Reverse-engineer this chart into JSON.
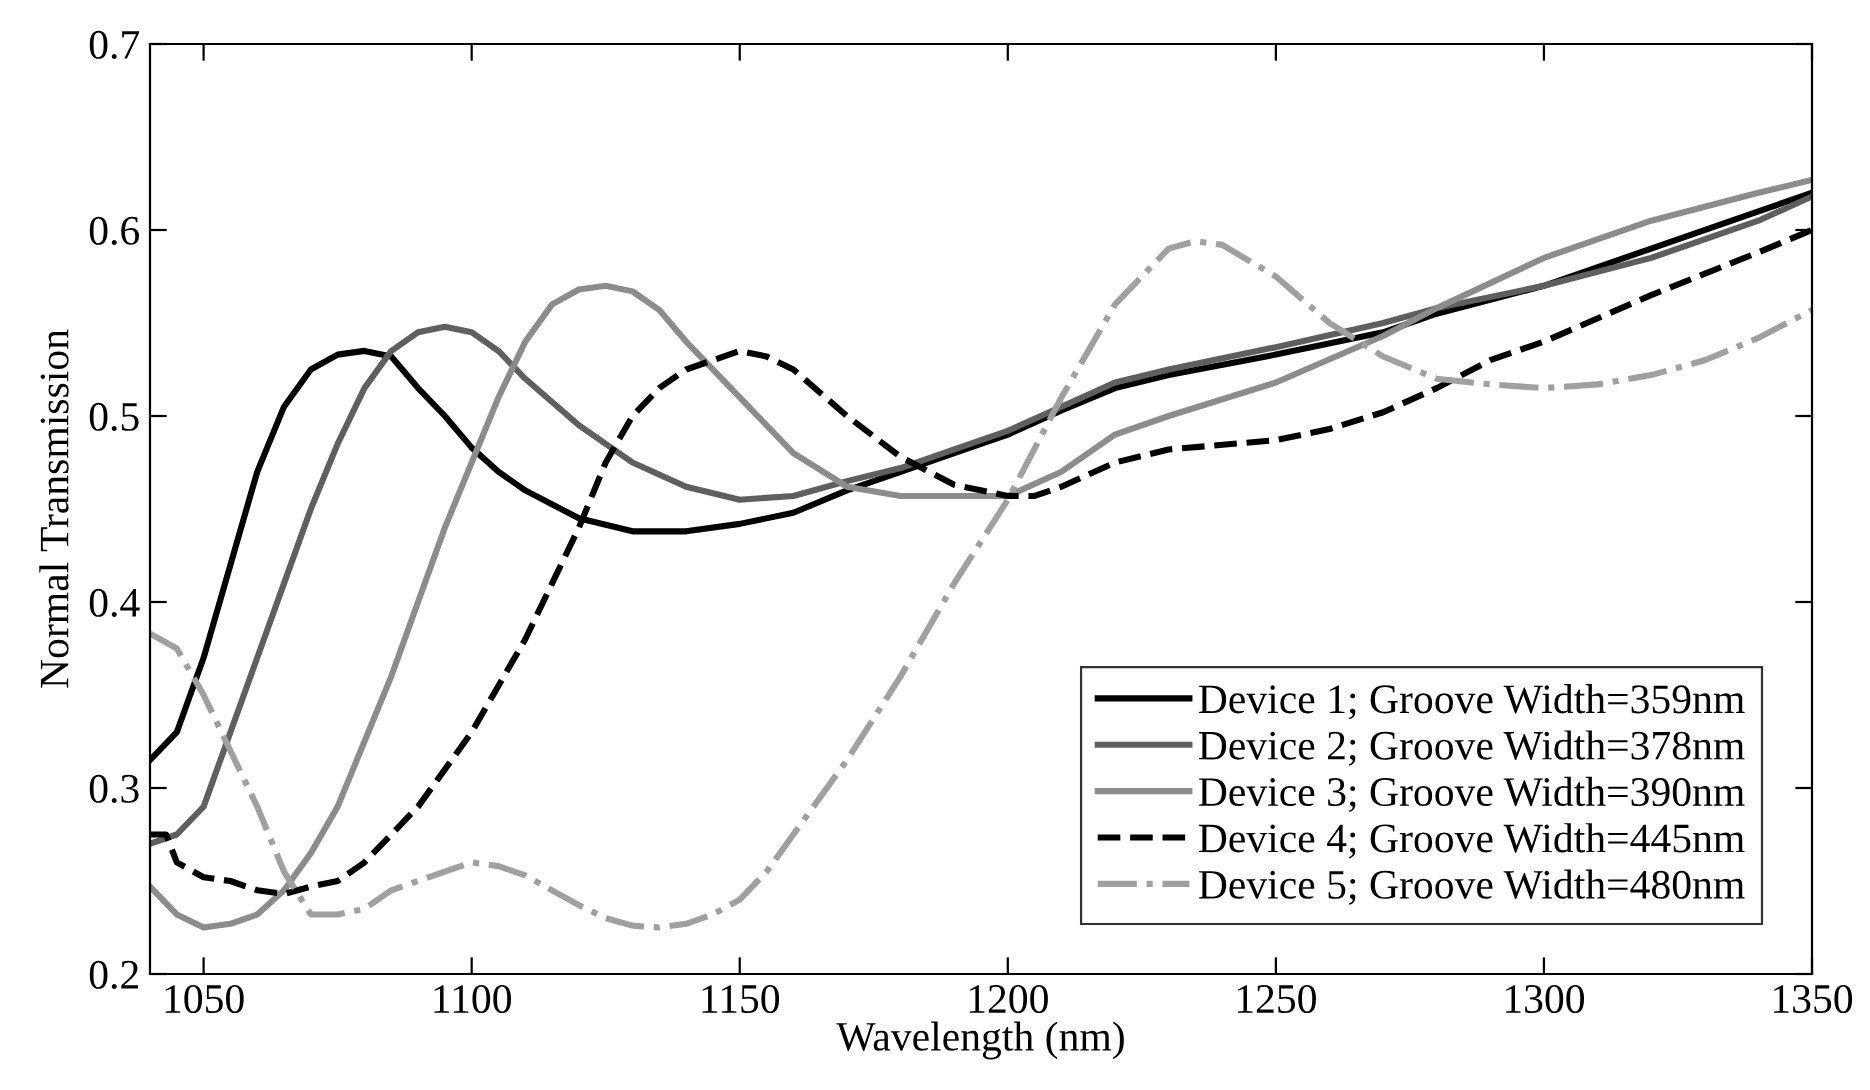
{
  "chart_data": {
    "type": "line",
    "xlabel": "Wavelength (nm)",
    "ylabel": "Normal Transmission",
    "xlim": [
      1040,
      1350
    ],
    "xticks": [
      1050,
      1100,
      1150,
      1200,
      1250,
      1300,
      1350
    ],
    "ylim": [
      0.2,
      0.7
    ],
    "yticks": [
      0.2,
      0.3,
      0.4,
      0.5,
      0.6,
      0.7
    ],
    "grid": false,
    "legend": "bottom right",
    "marker": "none",
    "series": [
      {
        "name": "Device 1; Groove Width=359nm",
        "color": "#000000",
        "line_style": "solid",
        "x": [
          1040,
          1045,
          1050,
          1055,
          1060,
          1065,
          1070,
          1075,
          1080,
          1085,
          1090,
          1095,
          1100,
          1105,
          1110,
          1120,
          1130,
          1140,
          1150,
          1160,
          1170,
          1180,
          1190,
          1200,
          1210,
          1220,
          1230,
          1250,
          1270,
          1280,
          1300,
          1320,
          1340,
          1350
        ],
        "values": [
          0.315,
          0.33,
          0.37,
          0.42,
          0.47,
          0.505,
          0.525,
          0.533,
          0.535,
          0.532,
          0.515,
          0.5,
          0.483,
          0.47,
          0.46,
          0.445,
          0.438,
          0.438,
          0.442,
          0.448,
          0.46,
          0.47,
          0.48,
          0.49,
          0.503,
          0.515,
          0.522,
          0.533,
          0.545,
          0.555,
          0.57,
          0.59,
          0.61,
          0.62
        ]
      },
      {
        "name": "Device 2; Groove Width=378nm",
        "color": "#5f5f5f",
        "line_style": "solid",
        "x": [
          1040,
          1045,
          1050,
          1055,
          1060,
          1065,
          1070,
          1075,
          1080,
          1085,
          1090,
          1095,
          1100,
          1105,
          1110,
          1120,
          1130,
          1140,
          1150,
          1160,
          1170,
          1180,
          1190,
          1200,
          1210,
          1220,
          1230,
          1250,
          1270,
          1280,
          1300,
          1320,
          1340,
          1350
        ],
        "values": [
          0.27,
          0.275,
          0.29,
          0.33,
          0.37,
          0.41,
          0.45,
          0.485,
          0.515,
          0.535,
          0.545,
          0.548,
          0.545,
          0.535,
          0.52,
          0.495,
          0.475,
          0.462,
          0.455,
          0.457,
          0.465,
          0.472,
          0.482,
          0.492,
          0.505,
          0.518,
          0.525,
          0.537,
          0.55,
          0.558,
          0.57,
          0.585,
          0.605,
          0.618
        ]
      },
      {
        "name": "Device 3; Groove Width=390nm",
        "color": "#8c8c8c",
        "line_style": "solid",
        "x": [
          1040,
          1045,
          1050,
          1055,
          1060,
          1065,
          1070,
          1075,
          1080,
          1085,
          1090,
          1095,
          1100,
          1105,
          1110,
          1115,
          1120,
          1125,
          1130,
          1135,
          1140,
          1150,
          1160,
          1170,
          1180,
          1190,
          1200,
          1210,
          1220,
          1230,
          1250,
          1270,
          1280,
          1300,
          1320,
          1340,
          1350
        ],
        "values": [
          0.247,
          0.232,
          0.225,
          0.227,
          0.232,
          0.245,
          0.265,
          0.29,
          0.325,
          0.36,
          0.4,
          0.44,
          0.475,
          0.51,
          0.54,
          0.56,
          0.568,
          0.57,
          0.567,
          0.557,
          0.54,
          0.51,
          0.48,
          0.462,
          0.457,
          0.457,
          0.457,
          0.47,
          0.49,
          0.5,
          0.518,
          0.543,
          0.558,
          0.585,
          0.605,
          0.62,
          0.627
        ]
      },
      {
        "name": "Device 4; Groove Width=445nm",
        "color": "#000000",
        "line_style": "dashed",
        "x": [
          1040,
          1043,
          1045,
          1050,
          1055,
          1060,
          1065,
          1070,
          1075,
          1080,
          1085,
          1090,
          1095,
          1100,
          1105,
          1110,
          1115,
          1120,
          1125,
          1130,
          1135,
          1140,
          1150,
          1155,
          1160,
          1170,
          1180,
          1190,
          1200,
          1205,
          1210,
          1220,
          1230,
          1250,
          1260,
          1270,
          1280,
          1290,
          1300,
          1320,
          1340,
          1350
        ],
        "values": [
          0.275,
          0.275,
          0.26,
          0.252,
          0.25,
          0.245,
          0.243,
          0.247,
          0.25,
          0.26,
          0.275,
          0.29,
          0.31,
          0.33,
          0.355,
          0.38,
          0.41,
          0.44,
          0.475,
          0.5,
          0.515,
          0.525,
          0.535,
          0.532,
          0.525,
          0.5,
          0.478,
          0.463,
          0.457,
          0.457,
          0.462,
          0.475,
          0.482,
          0.487,
          0.493,
          0.502,
          0.515,
          0.53,
          0.54,
          0.565,
          0.588,
          0.6
        ]
      },
      {
        "name": "Device 5; Groove Width=480nm",
        "color": "#a0a0a0",
        "line_style": "dashdot",
        "x": [
          1040,
          1045,
          1050,
          1055,
          1060,
          1065,
          1070,
          1075,
          1080,
          1085,
          1090,
          1095,
          1100,
          1105,
          1110,
          1115,
          1120,
          1125,
          1130,
          1135,
          1140,
          1145,
          1150,
          1155,
          1160,
          1170,
          1180,
          1190,
          1200,
          1210,
          1220,
          1230,
          1235,
          1240,
          1250,
          1260,
          1270,
          1280,
          1290,
          1300,
          1310,
          1320,
          1330,
          1340,
          1350
        ],
        "values": [
          0.383,
          0.375,
          0.35,
          0.32,
          0.29,
          0.255,
          0.232,
          0.232,
          0.235,
          0.245,
          0.25,
          0.255,
          0.26,
          0.258,
          0.253,
          0.245,
          0.237,
          0.23,
          0.226,
          0.225,
          0.227,
          0.232,
          0.24,
          0.255,
          0.275,
          0.315,
          0.36,
          0.41,
          0.455,
          0.51,
          0.56,
          0.59,
          0.594,
          0.592,
          0.575,
          0.55,
          0.532,
          0.52,
          0.517,
          0.515,
          0.517,
          0.522,
          0.53,
          0.542,
          0.557
        ]
      }
    ]
  }
}
